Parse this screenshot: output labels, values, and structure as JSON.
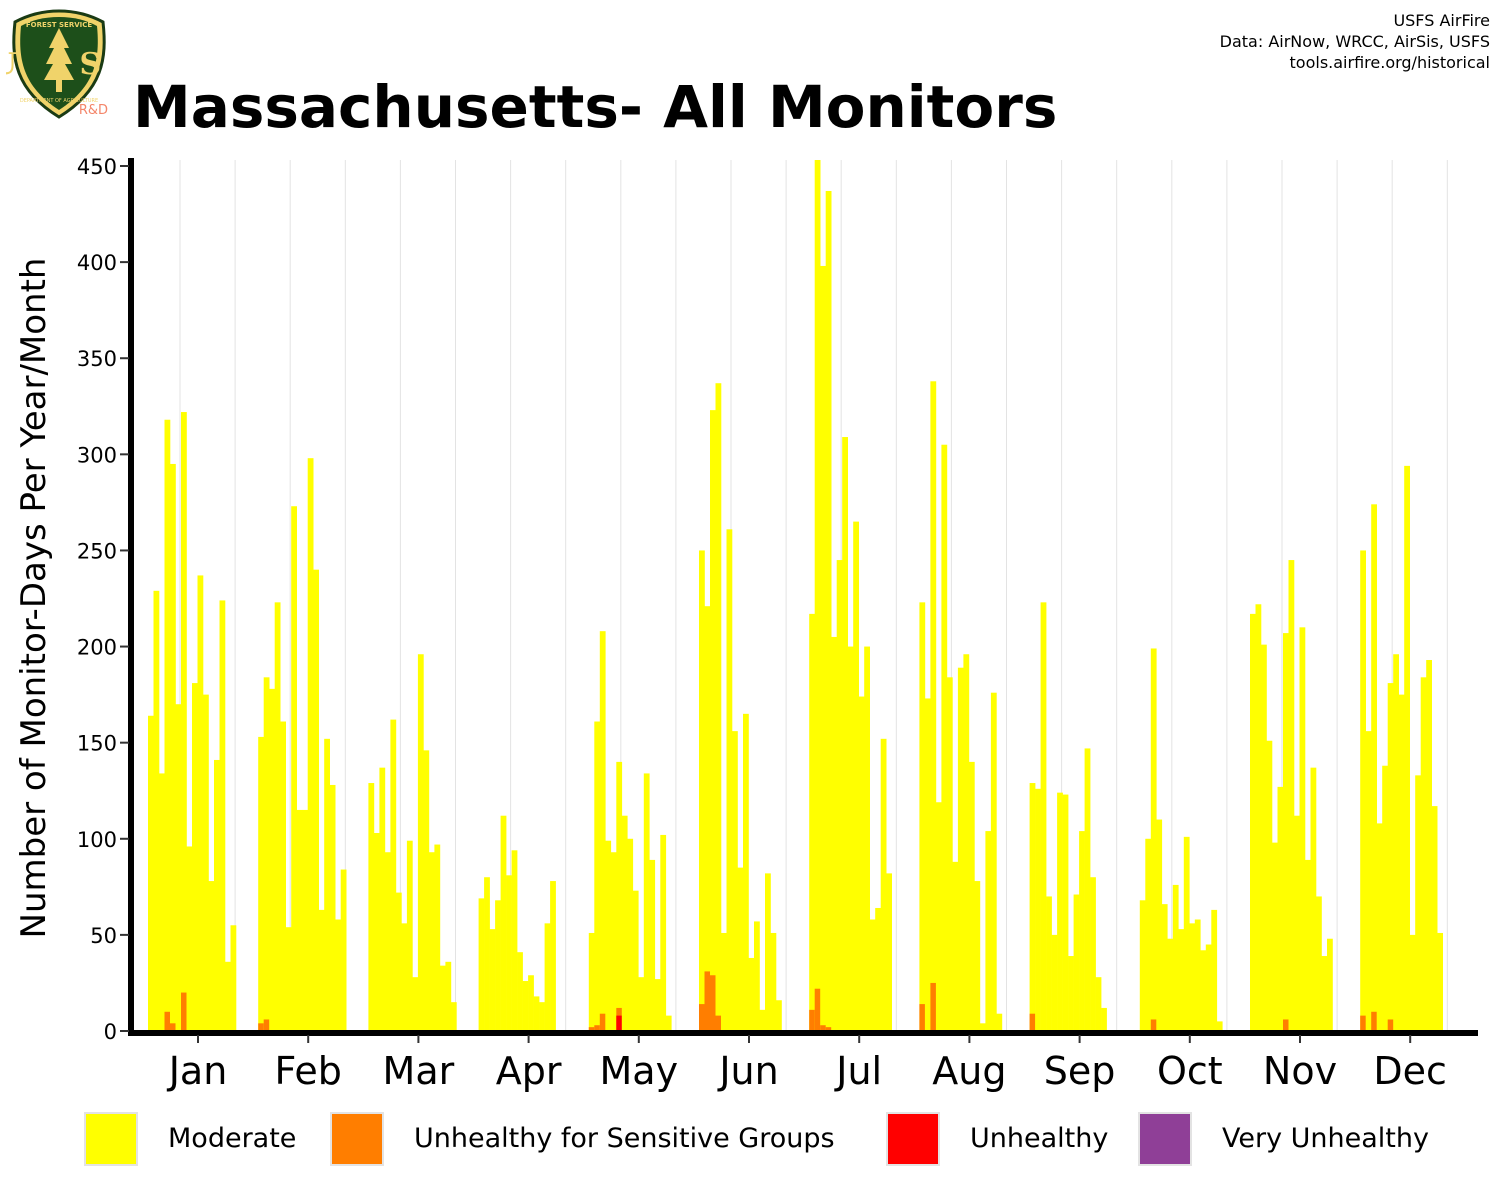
{
  "header": {
    "title": "Massachusetts- All Monitors",
    "credits": [
      "USFS AirFire",
      "Data: AirNow, WRCC, AirSis, USFS",
      "tools.airfire.org/historical"
    ]
  },
  "logo": {
    "icon": "usfs-shield-icon",
    "text_top": "FOREST SERVICE",
    "text_main": "U S",
    "text_bottom": "DEPARTMENT OF AGRICULTURE",
    "rd_label": "R&D"
  },
  "chart_data": {
    "type": "bar",
    "stacked": true,
    "title": "Massachusetts- All Monitors",
    "xlabel": "",
    "ylabel": "Number of Monitor-Days Per Year/Month",
    "ylim": [
      0,
      450
    ],
    "yticks": [
      0,
      50,
      100,
      150,
      200,
      250,
      300,
      350,
      400,
      450
    ],
    "grid": "vertical",
    "legend_position": "bottom",
    "categories": [
      "Jan",
      "Feb",
      "Mar",
      "Apr",
      "May",
      "Jun",
      "Jul",
      "Aug",
      "Sep",
      "Oct",
      "Nov",
      "Dec"
    ],
    "colors": {
      "moderate": "#ffff00",
      "usg": "#ff7e00",
      "unhealthy": "#ff0000",
      "very_unhealthy": "#8f3f97",
      "axis": "#000000",
      "grid": "#e3e3e3"
    },
    "series": [
      {
        "name": "Moderate",
        "key": "moderate",
        "color": "#ffff00"
      },
      {
        "name": "Unhealthy for Sensitive Groups",
        "key": "usg",
        "color": "#ff7e00"
      },
      {
        "name": "Unhealthy",
        "key": "unhealthy",
        "color": "#ff0000"
      },
      {
        "name": "Very Unhealthy",
        "key": "very_unhealthy",
        "color": "#8f3f97"
      }
    ],
    "months": [
      {
        "month": "Jan",
        "moderate": [
          164,
          229,
          134,
          318,
          295,
          170,
          322,
          96,
          181,
          237,
          175,
          78,
          141,
          224,
          36,
          55
        ],
        "usg": [
          0,
          0,
          0,
          10,
          4,
          0,
          20,
          0,
          0,
          0,
          0,
          0,
          0,
          0,
          0,
          0
        ],
        "unhealthy": [
          0,
          0,
          0,
          0,
          0,
          0,
          0,
          0,
          0,
          0,
          0,
          0,
          0,
          0,
          0,
          0
        ]
      },
      {
        "month": "Feb",
        "moderate": [
          153,
          184,
          178,
          223,
          161,
          54,
          273,
          115,
          115,
          298,
          240,
          63,
          152,
          128,
          58,
          84
        ],
        "usg": [
          4,
          6,
          0,
          0,
          0,
          0,
          0,
          0,
          0,
          0,
          0,
          0,
          0,
          0,
          0,
          0
        ],
        "unhealthy": [
          0,
          0,
          0,
          0,
          0,
          0,
          0,
          0,
          0,
          0,
          0,
          0,
          0,
          0,
          0,
          0
        ]
      },
      {
        "month": "Mar",
        "moderate": [
          129,
          103,
          137,
          93,
          162,
          72,
          56,
          99,
          28,
          196,
          146,
          93,
          97,
          34,
          36,
          15
        ],
        "usg": [
          0,
          0,
          0,
          0,
          0,
          0,
          0,
          0,
          0,
          0,
          0,
          0,
          0,
          0,
          0,
          0
        ],
        "unhealthy": [
          0,
          0,
          0,
          0,
          0,
          0,
          0,
          0,
          0,
          0,
          0,
          0,
          0,
          0,
          0,
          0
        ]
      },
      {
        "month": "Apr",
        "moderate": [
          69,
          80,
          53,
          68,
          112,
          81,
          94,
          41,
          26,
          29,
          18,
          15,
          56,
          78
        ],
        "usg": [
          0,
          0,
          0,
          0,
          0,
          0,
          0,
          0,
          0,
          0,
          0,
          0,
          0,
          0
        ],
        "unhealthy": [
          0,
          0,
          0,
          0,
          0,
          0,
          0,
          0,
          0,
          0,
          0,
          0,
          0,
          0
        ]
      },
      {
        "month": "May",
        "moderate": [
          51,
          161,
          208,
          99,
          93,
          140,
          112,
          100,
          73,
          28,
          134,
          89,
          27,
          102,
          8
        ],
        "usg": [
          2,
          3,
          9,
          0,
          0,
          12,
          0,
          0,
          0,
          0,
          0,
          0,
          0,
          0,
          0
        ],
        "unhealthy": [
          0,
          0,
          0,
          0,
          0,
          8,
          0,
          0,
          0,
          0,
          0,
          0,
          0,
          0,
          0
        ]
      },
      {
        "month": "Jun",
        "moderate": [
          250,
          221,
          323,
          337,
          51,
          261,
          156,
          85,
          165,
          38,
          57,
          11,
          82,
          51,
          16
        ],
        "usg": [
          14,
          31,
          29,
          8,
          0,
          0,
          0,
          0,
          0,
          0,
          0,
          0,
          0,
          0,
          0
        ],
        "unhealthy": [
          0,
          0,
          0,
          0,
          0,
          0,
          0,
          0,
          0,
          0,
          0,
          0,
          0,
          0,
          0
        ]
      },
      {
        "month": "Jul",
        "moderate": [
          217,
          455,
          398,
          437,
          205,
          245,
          309,
          200,
          265,
          174,
          200,
          58,
          64,
          152,
          82
        ],
        "usg": [
          11,
          22,
          3,
          2,
          0,
          0,
          0,
          0,
          0,
          0,
          0,
          0,
          0,
          0,
          0
        ],
        "unhealthy": [
          0,
          0,
          0,
          0,
          0,
          0,
          0,
          0,
          0,
          0,
          0,
          0,
          0,
          0,
          0
        ]
      },
      {
        "month": "Aug",
        "moderate": [
          223,
          173,
          338,
          119,
          305,
          184,
          88,
          189,
          196,
          140,
          78,
          4,
          104,
          176,
          9
        ],
        "usg": [
          14,
          0,
          25,
          0,
          0,
          0,
          0,
          0,
          0,
          0,
          0,
          0,
          0,
          0,
          0
        ],
        "unhealthy": [
          0,
          0,
          0,
          0,
          0,
          0,
          0,
          0,
          0,
          0,
          0,
          0,
          0,
          0,
          0
        ]
      },
      {
        "month": "Sep",
        "moderate": [
          129,
          126,
          223,
          70,
          50,
          124,
          123,
          39,
          71,
          104,
          147,
          80,
          28,
          12
        ],
        "usg": [
          9,
          0,
          0,
          0,
          0,
          0,
          0,
          0,
          0,
          0,
          0,
          0,
          0,
          0
        ],
        "unhealthy": [
          0,
          0,
          0,
          0,
          0,
          0,
          0,
          0,
          0,
          0,
          0,
          0,
          0,
          0
        ]
      },
      {
        "month": "Oct",
        "moderate": [
          68,
          100,
          199,
          110,
          66,
          48,
          76,
          53,
          101,
          56,
          58,
          42,
          45,
          63,
          5
        ],
        "usg": [
          0,
          0,
          6,
          0,
          0,
          0,
          0,
          0,
          0,
          0,
          0,
          0,
          0,
          0,
          0
        ],
        "unhealthy": [
          0,
          0,
          0,
          0,
          0,
          0,
          0,
          0,
          0,
          0,
          0,
          0,
          0,
          0,
          0
        ]
      },
      {
        "month": "Nov",
        "moderate": [
          217,
          222,
          201,
          151,
          98,
          127,
          207,
          245,
          112,
          210,
          89,
          137,
          70,
          39,
          48
        ],
        "usg": [
          0,
          0,
          0,
          0,
          0,
          0,
          6,
          0,
          0,
          0,
          0,
          0,
          0,
          0,
          0
        ],
        "unhealthy": [
          0,
          0,
          0,
          0,
          0,
          0,
          0,
          0,
          0,
          0,
          0,
          0,
          0,
          0,
          0
        ]
      },
      {
        "month": "Dec",
        "moderate": [
          250,
          156,
          274,
          108,
          138,
          181,
          196,
          175,
          294,
          50,
          133,
          184,
          193,
          117,
          51
        ],
        "usg": [
          8,
          0,
          10,
          0,
          0,
          6,
          0,
          0,
          0,
          0,
          0,
          0,
          0,
          0,
          0
        ],
        "unhealthy": [
          0,
          0,
          0,
          0,
          0,
          0,
          0,
          0,
          0,
          0,
          0,
          0,
          0,
          0,
          0
        ]
      }
    ]
  }
}
